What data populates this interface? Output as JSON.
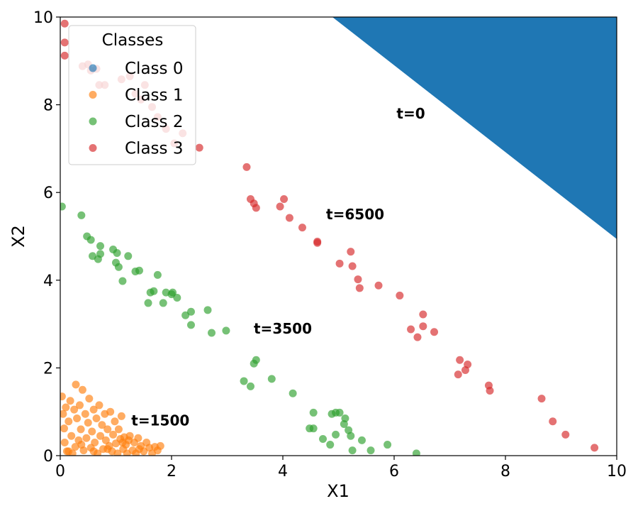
{
  "chart_data": {
    "type": "scatter",
    "xlabel": "X1",
    "ylabel": "X2",
    "xlim": [
      0,
      10
    ],
    "ylim": [
      0,
      10
    ],
    "xticks": [
      "0",
      "2",
      "4",
      "6",
      "8",
      "10"
    ],
    "yticks": [
      "0",
      "2",
      "4",
      "6",
      "8",
      "10"
    ],
    "grid": false,
    "legend": {
      "title": "Classes",
      "placement": "upper-left",
      "entries": [
        "Class 0",
        "Class 1",
        "Class 2",
        "Class 3"
      ]
    },
    "annotations": [
      {
        "text": "t=0",
        "x": 6.3,
        "y": 7.8
      },
      {
        "text": "t=6500",
        "x": 5.3,
        "y": 5.5
      },
      {
        "text": "t=3500",
        "x": 4.0,
        "y": 2.9
      },
      {
        "text": "t=1500",
        "x": 1.8,
        "y": 0.8
      }
    ],
    "series": [
      {
        "name": "Class 0",
        "color": "#1f77b4",
        "region_polygon": [
          [
            4.9,
            10.0
          ],
          [
            10.0,
            10.0
          ],
          [
            10.0,
            4.95
          ]
        ]
      },
      {
        "name": "Class 1",
        "color": "#ff7f0e",
        "points": [
          [
            0.03,
            1.35
          ],
          [
            0.05,
            0.95
          ],
          [
            0.07,
            0.62
          ],
          [
            0.08,
            0.3
          ],
          [
            0.1,
            1.1
          ],
          [
            0.12,
            0.1
          ],
          [
            0.15,
            0.78
          ],
          [
            0.18,
            1.25
          ],
          [
            0.2,
            0.45
          ],
          [
            0.22,
            0.05
          ],
          [
            0.25,
            1.05
          ],
          [
            0.27,
            0.2
          ],
          [
            0.28,
            1.62
          ],
          [
            0.3,
            0.85
          ],
          [
            0.33,
            0.35
          ],
          [
            0.35,
            1.15
          ],
          [
            0.37,
            0.6
          ],
          [
            0.4,
            1.5
          ],
          [
            0.42,
            0.12
          ],
          [
            0.45,
            0.95
          ],
          [
            0.47,
            0.4
          ],
          [
            0.5,
            0.75
          ],
          [
            0.52,
            1.3
          ],
          [
            0.55,
            0.18
          ],
          [
            0.57,
            0.55
          ],
          [
            0.6,
            1.05
          ],
          [
            0.62,
            0.3
          ],
          [
            0.65,
            0.85
          ],
          [
            0.67,
            0.05
          ],
          [
            0.7,
            1.15
          ],
          [
            0.72,
            0.45
          ],
          [
            0.75,
            0.7
          ],
          [
            0.77,
            0.15
          ],
          [
            0.8,
            0.95
          ],
          [
            0.82,
            0.35
          ],
          [
            0.85,
            0.6
          ],
          [
            0.88,
            0.22
          ],
          [
            0.9,
            1.0
          ],
          [
            0.93,
            0.1
          ],
          [
            0.95,
            0.48
          ],
          [
            0.98,
            0.78
          ],
          [
            1.0,
            0.28
          ],
          [
            1.03,
            0.05
          ],
          [
            1.05,
            0.6
          ],
          [
            1.08,
            0.38
          ],
          [
            1.1,
            0.9
          ],
          [
            1.13,
            0.15
          ],
          [
            1.15,
            0.42
          ],
          [
            1.18,
            0.25
          ],
          [
            1.2,
            0.05
          ],
          [
            1.23,
            0.35
          ],
          [
            1.25,
            0.45
          ],
          [
            1.3,
            0.12
          ],
          [
            1.33,
            0.3
          ],
          [
            1.36,
            0.05
          ],
          [
            1.4,
            0.4
          ],
          [
            1.45,
            0.22
          ],
          [
            1.5,
            0.1
          ],
          [
            1.55,
            0.3
          ],
          [
            1.6,
            0.18
          ],
          [
            1.65,
            0.05
          ],
          [
            1.7,
            0.2
          ],
          [
            1.75,
            0.12
          ],
          [
            1.8,
            0.22
          ],
          [
            0.15,
            0.1
          ],
          [
            0.38,
            0.25
          ],
          [
            0.6,
            0.1
          ],
          [
            0.85,
            0.15
          ],
          [
            1.12,
            0.3
          ],
          [
            1.42,
            0.15
          ]
        ]
      },
      {
        "name": "Class 2",
        "color": "#2ca02c",
        "points": [
          [
            0.03,
            5.68
          ],
          [
            0.38,
            5.48
          ],
          [
            0.48,
            5.0
          ],
          [
            0.55,
            4.92
          ],
          [
            0.58,
            4.55
          ],
          [
            0.68,
            4.48
          ],
          [
            0.72,
            4.78
          ],
          [
            0.72,
            4.6
          ],
          [
            0.95,
            4.7
          ],
          [
            1.0,
            4.4
          ],
          [
            1.02,
            4.62
          ],
          [
            1.05,
            4.3
          ],
          [
            1.12,
            3.98
          ],
          [
            1.22,
            4.55
          ],
          [
            1.35,
            4.2
          ],
          [
            1.42,
            4.22
          ],
          [
            1.58,
            3.48
          ],
          [
            1.62,
            3.72
          ],
          [
            1.68,
            3.75
          ],
          [
            1.75,
            4.12
          ],
          [
            1.85,
            3.48
          ],
          [
            1.9,
            3.72
          ],
          [
            2.0,
            3.68
          ],
          [
            2.02,
            3.72
          ],
          [
            2.1,
            3.6
          ],
          [
            2.25,
            3.2
          ],
          [
            2.35,
            3.28
          ],
          [
            2.35,
            2.98
          ],
          [
            2.65,
            3.32
          ],
          [
            2.72,
            2.8
          ],
          [
            2.98,
            2.85
          ],
          [
            3.3,
            1.7
          ],
          [
            3.42,
            1.58
          ],
          [
            3.48,
            2.1
          ],
          [
            3.52,
            2.18
          ],
          [
            3.8,
            1.75
          ],
          [
            4.18,
            1.42
          ],
          [
            4.48,
            0.62
          ],
          [
            4.55,
            0.62
          ],
          [
            4.55,
            0.98
          ],
          [
            4.72,
            0.38
          ],
          [
            4.85,
            0.25
          ],
          [
            4.88,
            0.95
          ],
          [
            4.95,
            0.98
          ],
          [
            4.95,
            0.48
          ],
          [
            5.02,
            0.98
          ],
          [
            5.1,
            0.72
          ],
          [
            5.12,
            0.85
          ],
          [
            5.18,
            0.58
          ],
          [
            5.22,
            0.45
          ],
          [
            5.25,
            0.12
          ],
          [
            5.42,
            0.35
          ],
          [
            5.58,
            0.12
          ],
          [
            5.88,
            0.25
          ],
          [
            6.4,
            0.05
          ]
        ]
      },
      {
        "name": "Class 3",
        "color": "#d62728",
        "points": [
          [
            0.08,
            9.85
          ],
          [
            0.08,
            9.42
          ],
          [
            0.08,
            9.12
          ],
          [
            0.4,
            8.88
          ],
          [
            0.5,
            8.92
          ],
          [
            0.55,
            8.78
          ],
          [
            0.65,
            8.82
          ],
          [
            0.7,
            8.45
          ],
          [
            0.8,
            8.45
          ],
          [
            1.1,
            8.58
          ],
          [
            1.25,
            8.65
          ],
          [
            1.35,
            8.25
          ],
          [
            1.45,
            8.12
          ],
          [
            1.52,
            8.45
          ],
          [
            1.65,
            7.95
          ],
          [
            1.75,
            7.72
          ],
          [
            1.9,
            7.45
          ],
          [
            2.05,
            7.12
          ],
          [
            2.2,
            7.35
          ],
          [
            2.5,
            7.02
          ],
          [
            3.35,
            6.58
          ],
          [
            3.42,
            5.85
          ],
          [
            3.48,
            5.75
          ],
          [
            3.52,
            5.65
          ],
          [
            3.95,
            5.68
          ],
          [
            4.02,
            5.85
          ],
          [
            4.12,
            5.42
          ],
          [
            4.35,
            5.2
          ],
          [
            4.62,
            4.85
          ],
          [
            4.62,
            4.88
          ],
          [
            5.02,
            4.38
          ],
          [
            5.22,
            4.65
          ],
          [
            5.25,
            4.32
          ],
          [
            5.35,
            4.02
          ],
          [
            5.38,
            3.82
          ],
          [
            5.72,
            3.88
          ],
          [
            6.1,
            3.65
          ],
          [
            6.3,
            2.88
          ],
          [
            6.42,
            2.7
          ],
          [
            6.52,
            3.22
          ],
          [
            6.52,
            2.95
          ],
          [
            6.72,
            2.82
          ],
          [
            7.15,
            1.85
          ],
          [
            7.18,
            2.18
          ],
          [
            7.28,
            1.95
          ],
          [
            7.32,
            2.08
          ],
          [
            7.7,
            1.6
          ],
          [
            7.72,
            1.48
          ],
          [
            8.65,
            1.3
          ],
          [
            8.85,
            0.78
          ],
          [
            9.08,
            0.48
          ],
          [
            9.6,
            0.18
          ]
        ]
      }
    ]
  }
}
